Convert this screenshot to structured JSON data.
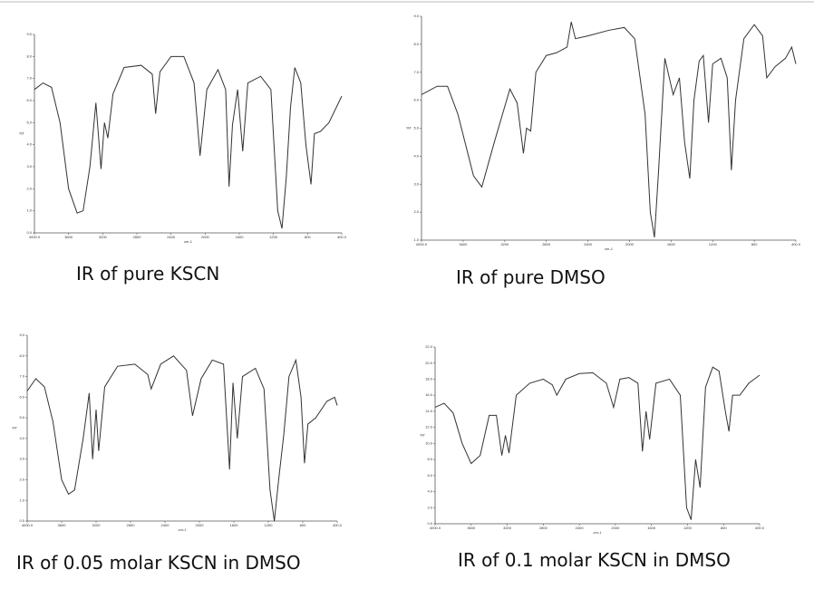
{
  "chart_data": [
    {
      "type": "line",
      "title": "IR of pure KSCN",
      "xlabel": "cm-1",
      "ylabel": "%T",
      "xlim": [
        4000,
        400
      ],
      "ylim": [
        0,
        9
      ],
      "xticks": [
        {
          "value": 4000,
          "label": "4000.0"
        },
        3600,
        3200,
        2800,
        2400,
        2000,
        1600,
        1200,
        800,
        {
          "value": 400,
          "label": "400.0"
        }
      ],
      "yticks": [
        {
          "value": 0,
          "label": "0.0"
        },
        {
          "value": 1,
          "label": "1.0"
        },
        {
          "value": 2,
          "label": "2.0"
        },
        {
          "value": 3,
          "label": "3.0"
        },
        {
          "value": 4,
          "label": "4.0"
        },
        {
          "value": 5,
          "label": "5.0"
        },
        {
          "value": 6,
          "label": "6.0"
        },
        {
          "value": 7,
          "label": "7.0"
        },
        {
          "value": 8,
          "label": "8.0"
        },
        {
          "value": 9,
          "label": "9.0"
        }
      ],
      "series": [
        {
          "name": "KSCN",
          "color": "#333333",
          "x": [
            4000,
            3900,
            3800,
            3700,
            3600,
            3500,
            3430,
            3350,
            3280,
            3220,
            3180,
            3140,
            3080,
            2950,
            2750,
            2620,
            2580,
            2530,
            2400,
            2250,
            2130,
            2060,
            1980,
            1850,
            1760,
            1720,
            1680,
            1620,
            1560,
            1500,
            1350,
            1230,
            1150,
            1100,
            1050,
            1000,
            950,
            880,
            820,
            760,
            720,
            650,
            550,
            400
          ],
          "values": [
            6.5,
            6.8,
            6.6,
            5,
            2,
            0.9,
            1.0,
            3,
            5.9,
            2.9,
            5.0,
            4.3,
            6.3,
            7.5,
            7.6,
            7.2,
            5.4,
            7.3,
            8.0,
            8.0,
            6.8,
            3.5,
            6.5,
            7.4,
            6.5,
            2.1,
            4.9,
            6.5,
            3.7,
            6.8,
            7.1,
            6.5,
            1.0,
            0.2,
            2.5,
            5.7,
            7.5,
            6.8,
            4.0,
            2.2,
            4.5,
            4.6,
            5.0,
            6.2
          ]
        }
      ]
    },
    {
      "type": "line",
      "title": "IR of pure DMSO",
      "xlabel": "cm-1",
      "ylabel": "%T",
      "xlim": [
        4000,
        400
      ],
      "ylim": [
        1,
        9
      ],
      "xticks": [
        {
          "value": 4000,
          "label": "4000.0"
        },
        3600,
        3200,
        2800,
        2400,
        2000,
        1600,
        1200,
        800,
        {
          "value": 400,
          "label": "400.0"
        }
      ],
      "yticks": [
        {
          "value": 1,
          "label": "1.0"
        },
        {
          "value": 2,
          "label": "2.0"
        },
        {
          "value": 3,
          "label": "3.0"
        },
        {
          "value": 4,
          "label": "4.0"
        },
        {
          "value": 5,
          "label": "5.0"
        },
        {
          "value": 6,
          "label": "6.0"
        },
        {
          "value": 7,
          "label": "7.0"
        },
        {
          "value": 8,
          "label": "8.0"
        },
        {
          "value": 9,
          "label": "9.0"
        }
      ],
      "series": [
        {
          "name": "DMSO",
          "color": "#333333",
          "x": [
            4000,
            3850,
            3750,
            3650,
            3500,
            3420,
            3300,
            3150,
            3080,
            3020,
            2990,
            2950,
            2900,
            2800,
            2700,
            2600,
            2560,
            2520,
            2400,
            2200,
            2050,
            1950,
            1850,
            1800,
            1760,
            1720,
            1660,
            1580,
            1520,
            1470,
            1420,
            1380,
            1330,
            1290,
            1240,
            1200,
            1120,
            1060,
            1020,
            980,
            900,
            800,
            720,
            680,
            600,
            500,
            440,
            400
          ],
          "values": [
            6.2,
            6.5,
            6.5,
            5.5,
            3.3,
            2.9,
            4.5,
            6.4,
            5.9,
            4.1,
            5.0,
            4.9,
            7.0,
            7.6,
            7.7,
            7.9,
            8.8,
            8.2,
            8.3,
            8.5,
            8.6,
            8.2,
            5.5,
            2.0,
            1.1,
            3.5,
            7.5,
            6.2,
            6.8,
            4.5,
            3.2,
            6.0,
            7.4,
            7.6,
            5.2,
            7.3,
            7.5,
            6.8,
            3.5,
            6.0,
            8.2,
            8.7,
            8.3,
            6.8,
            7.2,
            7.5,
            7.9,
            7.3
          ]
        }
      ]
    },
    {
      "type": "line",
      "title": "IR of 0.05 molar KSCN in DMSO",
      "xlabel": "cm-1",
      "ylabel": "%T",
      "xlim": [
        4000,
        400
      ],
      "ylim": [
        0,
        9
      ],
      "xticks": [
        {
          "value": 4000,
          "label": "4000.0"
        },
        3600,
        3200,
        2800,
        2400,
        2000,
        1600,
        1200,
        800,
        {
          "value": 400,
          "label": "400.0"
        }
      ],
      "yticks": [
        {
          "value": 0,
          "label": "0.0"
        },
        {
          "value": 1,
          "label": "1.0"
        },
        {
          "value": 2,
          "label": "2.0"
        },
        {
          "value": 3,
          "label": "3.0"
        },
        {
          "value": 4,
          "label": "4.0"
        },
        {
          "value": 5,
          "label": "5.0"
        },
        {
          "value": 6,
          "label": "6.0"
        },
        {
          "value": 7,
          "label": "7.0"
        },
        {
          "value": 8,
          "label": "8.0"
        },
        {
          "value": 9,
          "label": "9.0"
        }
      ],
      "series": [
        {
          "name": "0.05 M",
          "color": "#333333",
          "x": [
            4000,
            3900,
            3800,
            3700,
            3600,
            3520,
            3450,
            3350,
            3280,
            3240,
            3200,
            3170,
            3100,
            2950,
            2750,
            2600,
            2560,
            2450,
            2300,
            2150,
            2080,
            1980,
            1850,
            1720,
            1650,
            1610,
            1560,
            1500,
            1350,
            1250,
            1180,
            1130,
            1080,
            1020,
            960,
            880,
            820,
            780,
            740,
            650,
            520,
            430,
            400
          ],
          "values": [
            6.3,
            6.9,
            6.5,
            4.8,
            2.0,
            1.3,
            1.5,
            4.0,
            6.2,
            3.0,
            5.4,
            3.4,
            6.5,
            7.5,
            7.6,
            7.1,
            6.4,
            7.6,
            8.0,
            7.3,
            5.1,
            6.9,
            7.8,
            7.6,
            2.5,
            6.7,
            4.0,
            7.0,
            7.4,
            6.4,
            1.5,
            0.0,
            2.0,
            4.2,
            7.0,
            7.8,
            6.0,
            2.8,
            4.7,
            5.0,
            5.8,
            6.0,
            5.6
          ]
        }
      ]
    },
    {
      "type": "line",
      "title": "IR of 0.1 molar KSCN in DMSO",
      "xlabel": "cm-1",
      "ylabel": "%T",
      "xlim": [
        4000,
        400
      ],
      "ylim": [
        0,
        22
      ],
      "xticks": [
        {
          "value": 4000,
          "label": "4000.0"
        },
        3600,
        3200,
        2800,
        2400,
        2000,
        1600,
        1200,
        800,
        {
          "value": 400,
          "label": "400.0"
        }
      ],
      "yticks": [
        {
          "value": 0,
          "label": "0.0"
        },
        {
          "value": 2,
          "label": "2.0"
        },
        {
          "value": 4,
          "label": "4.0"
        },
        {
          "value": 6,
          "label": "6.0"
        },
        {
          "value": 8,
          "label": "8.0"
        },
        {
          "value": 10,
          "label": "10.0"
        },
        {
          "value": 12,
          "label": "12.0"
        },
        {
          "value": 14,
          "label": "14.0"
        },
        {
          "value": 16,
          "label": "16.0"
        },
        {
          "value": 18,
          "label": "18.0"
        },
        {
          "value": 20,
          "label": "20.0"
        },
        {
          "value": 22,
          "label": "22.0"
        }
      ],
      "series": [
        {
          "name": "0.1 M",
          "color": "#333333",
          "x": [
            4000,
            3900,
            3800,
            3700,
            3600,
            3500,
            3400,
            3320,
            3260,
            3220,
            3180,
            3100,
            2950,
            2800,
            2700,
            2650,
            2550,
            2400,
            2250,
            2100,
            2020,
            1950,
            1850,
            1750,
            1700,
            1660,
            1620,
            1550,
            1400,
            1280,
            1210,
            1160,
            1110,
            1060,
            1000,
            920,
            850,
            780,
            740,
            700,
            620,
            520,
            400
          ],
          "values": [
            14.5,
            15.0,
            13.8,
            10,
            7.5,
            8.5,
            13.5,
            13.5,
            8.5,
            11,
            8.8,
            16,
            17.5,
            18,
            17.3,
            16,
            18,
            18.7,
            18.8,
            17.5,
            14.5,
            18,
            18.2,
            17.5,
            9,
            14,
            10.5,
            17.5,
            18,
            16,
            2,
            0.5,
            8,
            4.5,
            17,
            19.5,
            19,
            14,
            11.5,
            16,
            16,
            17.5,
            18.5
          ]
        }
      ]
    }
  ]
}
